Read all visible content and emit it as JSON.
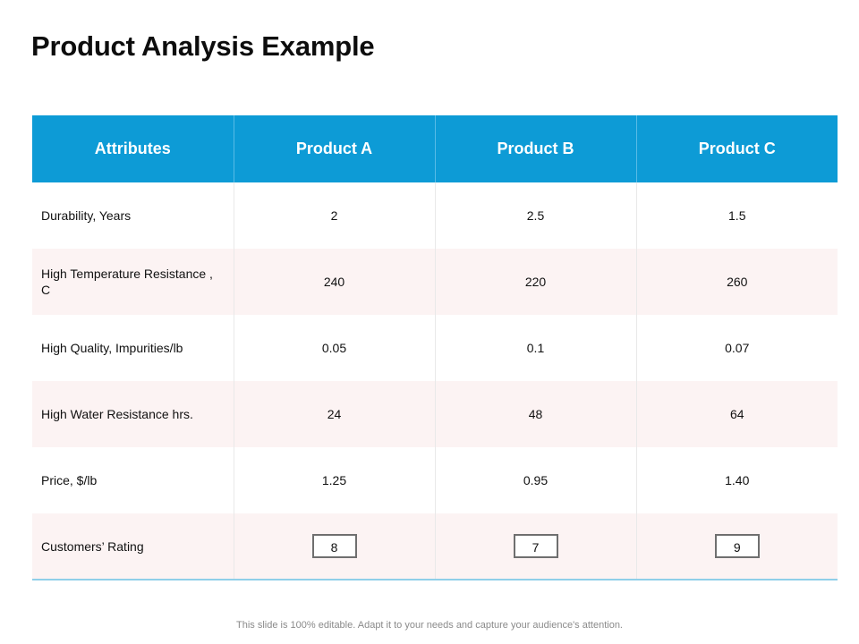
{
  "slide": {
    "title": "Product Analysis Example",
    "footer": "This slide is 100% editable. Adapt it to your needs and capture your audience's attention."
  },
  "colors": {
    "header_bg": "#0d9bd6",
    "header_text": "#ffffff",
    "row_alt_bg": "#fcf3f3",
    "bottom_rule": "#8fcfe9",
    "rating_box_border": "#6f6f6f"
  },
  "table": {
    "headers": [
      "Attributes",
      "Product A",
      "Product B",
      "Product C"
    ],
    "rows": [
      {
        "attribute": "Durability, Years",
        "values": [
          "2",
          "2.5",
          "1.5"
        ]
      },
      {
        "attribute": "High Temperature Resistance , C",
        "values": [
          "240",
          "220",
          "260"
        ]
      },
      {
        "attribute": "High Quality, Impurities/lb",
        "values": [
          "0.05",
          "0.1",
          "0.07"
        ]
      },
      {
        "attribute": "High Water Resistance hrs.",
        "values": [
          "24",
          "48",
          "64"
        ]
      },
      {
        "attribute": "Price, $/lb",
        "values": [
          "1.25",
          "0.95",
          "1.40"
        ]
      },
      {
        "attribute": "Customers’ Rating",
        "values": [
          "8",
          "7",
          "9"
        ]
      }
    ]
  }
}
